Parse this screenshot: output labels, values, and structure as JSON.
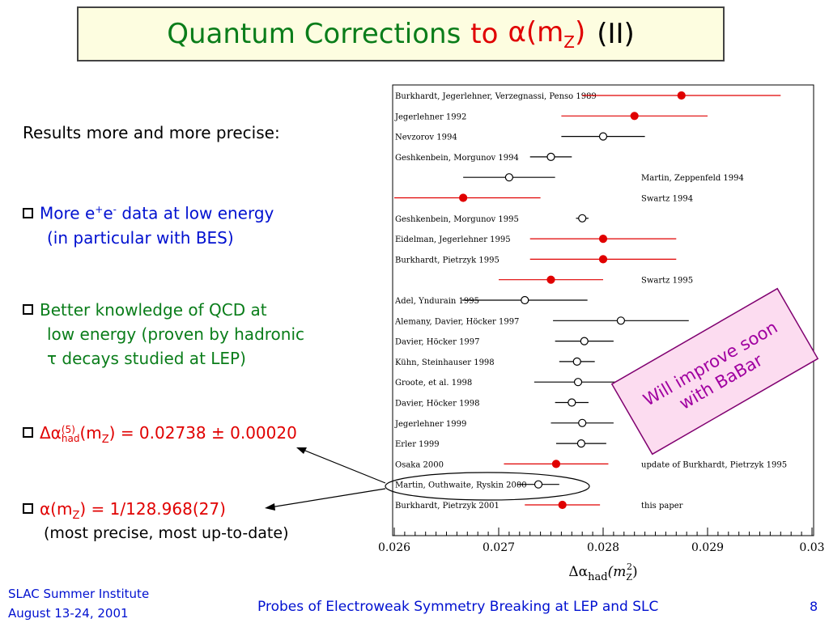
{
  "title": {
    "part1": "Quantum Corrections",
    "part2": "to",
    "part3": "α(m",
    "part3_sub": "Z",
    "part3_end": ")",
    "part4": "(II)"
  },
  "lead": "Results more and more precise:",
  "bullets": {
    "b1_line1": "More e",
    "b1_sup1": "+",
    "b1_mid": "e",
    "b1_sup2": "-",
    "b1_end": " data at low energy",
    "b1_line2": "(in particular with BES)",
    "b2_line1": "Better knowledge of QCD at",
    "b2_line2": "low energy (proven by hadronic",
    "b2_line3": "τ decays studied at LEP)",
    "b3_text": "Δα",
    "b3_sup": "(5)",
    "b3_sub": "had",
    "b3_mid": "(m",
    "b3_mz": "Z",
    "b3_end": ") = 0.02738 ± 0.00020",
    "b4_text": "α(m",
    "b4_sub": "Z",
    "b4_end": ") = 1/128.968(27)"
  },
  "note": "(most precise, most up-to-date)",
  "callout": {
    "line1": "Will improve soon",
    "line2": "with BaBar"
  },
  "footer": {
    "left_line1": "SLAC Summer Institute",
    "left_line2": "August 13-24, 2001",
    "center": "Probes of Electroweak Symmetry Breaking at LEP and SLC",
    "page": "8"
  },
  "colors": {
    "green": "#0a7d1a",
    "red": "#e00000",
    "blue": "#0010d0",
    "callout_bg": "#fcdcf0",
    "callout_border": "#800070"
  },
  "chart_data": {
    "type": "scatter",
    "xlim": [
      0.026,
      0.03
    ],
    "x_ticks": [
      "0.026",
      "0.027",
      "0.028",
      "0.029",
      "0.03"
    ],
    "xlabel": "Δα_had(m_Z²)",
    "points": [
      {
        "label": "Burkhardt, Jegerlehner, Verzegnassi, Penso 1989",
        "right_label": "",
        "value": 0.02875,
        "lo": 0.0278,
        "hi": 0.0297,
        "filled": true,
        "color": "red"
      },
      {
        "label": "Jegerlehner 1992",
        "right_label": "",
        "value": 0.0283,
        "lo": 0.0276,
        "hi": 0.029,
        "filled": true,
        "color": "red"
      },
      {
        "label": "Nevzorov 1994",
        "right_label": "",
        "value": 0.028,
        "lo": 0.0276,
        "hi": 0.0284,
        "filled": false,
        "color": "black"
      },
      {
        "label": "Geshkenbein, Morgunov 1994",
        "right_label": "",
        "value": 0.0275,
        "lo": 0.0273,
        "hi": 0.0277,
        "filled": false,
        "color": "black"
      },
      {
        "label": "",
        "right_label": "Martin, Zeppenfeld 1994",
        "value": 0.0271,
        "lo": 0.02666,
        "hi": 0.02754,
        "filled": false,
        "color": "black"
      },
      {
        "label": "",
        "right_label": "Swartz 1994",
        "value": 0.02666,
        "lo": 0.026,
        "hi": 0.0274,
        "filled": true,
        "color": "red"
      },
      {
        "label": "Geshkenbein, Morgunov 1995",
        "right_label": "",
        "value": 0.0278,
        "lo": 0.02774,
        "hi": 0.02786,
        "filled": false,
        "color": "black"
      },
      {
        "label": "Eidelman, Jegerlehner 1995",
        "right_label": "",
        "value": 0.028,
        "lo": 0.0273,
        "hi": 0.0287,
        "filled": true,
        "color": "red"
      },
      {
        "label": "Burkhardt, Pietrzyk 1995",
        "right_label": "",
        "value": 0.028,
        "lo": 0.0273,
        "hi": 0.0287,
        "filled": true,
        "color": "red"
      },
      {
        "label": "",
        "right_label": "Swartz 1995",
        "value": 0.0275,
        "lo": 0.027,
        "hi": 0.028,
        "filled": true,
        "color": "red"
      },
      {
        "label": "Adel, Yndurain 1995",
        "right_label": "",
        "value": 0.02725,
        "lo": 0.02665,
        "hi": 0.02785,
        "filled": false,
        "color": "black"
      },
      {
        "label": "Alemany, Davier, Höcker 1997",
        "right_label": "",
        "value": 0.02817,
        "lo": 0.02752,
        "hi": 0.02882,
        "filled": false,
        "color": "black"
      },
      {
        "label": "Davier, Höcker 1997",
        "right_label": "",
        "value": 0.02782,
        "lo": 0.02754,
        "hi": 0.0281,
        "filled": false,
        "color": "black"
      },
      {
        "label": "Kühn, Steinhauser 1998",
        "right_label": "",
        "value": 0.02775,
        "lo": 0.02758,
        "hi": 0.02792,
        "filled": false,
        "color": "black"
      },
      {
        "label": "Groote, et al. 1998",
        "right_label": "",
        "value": 0.02776,
        "lo": 0.02734,
        "hi": 0.02818,
        "filled": false,
        "color": "black"
      },
      {
        "label": "Davier, Höcker 1998",
        "right_label": "",
        "value": 0.0277,
        "lo": 0.02754,
        "hi": 0.02786,
        "filled": false,
        "color": "black"
      },
      {
        "label": "Jegerlehner 1999",
        "right_label": "",
        "value": 0.0278,
        "lo": 0.0275,
        "hi": 0.0281,
        "filled": false,
        "color": "black"
      },
      {
        "label": "Erler 1999",
        "right_label": "",
        "value": 0.02779,
        "lo": 0.02755,
        "hi": 0.02803,
        "filled": false,
        "color": "black"
      },
      {
        "label": "Osaka 2000",
        "right_label": "update of Burkhardt, Pietrzyk 1995",
        "value": 0.02755,
        "lo": 0.02705,
        "hi": 0.02805,
        "filled": true,
        "color": "red"
      },
      {
        "label": "Martin, Outhwaite, Ryskin 2000",
        "right_label": "",
        "value": 0.02738,
        "lo": 0.02718,
        "hi": 0.02758,
        "filled": false,
        "color": "black"
      },
      {
        "label": "Burkhardt, Pietrzyk 2001",
        "right_label": "this paper",
        "value": 0.02761,
        "lo": 0.02725,
        "hi": 0.02797,
        "filled": true,
        "color": "red"
      }
    ]
  }
}
